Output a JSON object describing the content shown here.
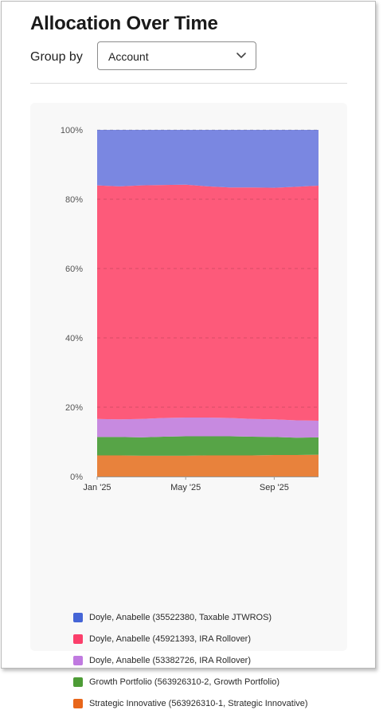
{
  "page": {
    "title": "Allocation Over Time"
  },
  "controls": {
    "group_by_label": "Group by",
    "group_by_value": "Account"
  },
  "colors": {
    "grid": "#d9d9d9",
    "axis": "#9a9a9a",
    "tick_text": "#555555"
  },
  "chart_data": {
    "type": "area",
    "stacked": true,
    "normalized": true,
    "x": [
      "2025-01",
      "2025-02",
      "2025-03",
      "2025-04",
      "2025-05",
      "2025-06",
      "2025-07",
      "2025-08",
      "2025-09",
      "2025-10",
      "2025-11"
    ],
    "x_tick_labels": [
      "Jan '25",
      "May '25",
      "Sep '25"
    ],
    "x_tick_positions": [
      0,
      4,
      8
    ],
    "y_ticks": [
      0,
      20,
      40,
      60,
      80,
      100
    ],
    "y_tick_labels": [
      "0%",
      "20%",
      "40%",
      "60%",
      "80%",
      "100%"
    ],
    "ylim": [
      0,
      100
    ],
    "grid": true,
    "legend_position": "bottom",
    "series": [
      {
        "name": "Strategic Innovative (563926310-1, Strategic Innovative)",
        "color": "#e8823c",
        "values": [
          6.1,
          6.1,
          6.0,
          6.0,
          6.0,
          6.1,
          6.1,
          6.1,
          6.2,
          6.2,
          6.3
        ]
      },
      {
        "name": "Growth Portfolio (563926310-2, Growth Portfolio)",
        "color": "#57a447",
        "values": [
          5.3,
          5.3,
          5.3,
          5.5,
          5.6,
          5.5,
          5.5,
          5.4,
          5.2,
          5.0,
          5.0
        ]
      },
      {
        "name": "Doyle, Anabelle (53382726, IRA Rollover)",
        "color": "#c78ae0",
        "values": [
          5.2,
          5.1,
          5.3,
          5.4,
          5.4,
          5.4,
          5.3,
          5.1,
          5.1,
          5.0,
          4.8
        ]
      },
      {
        "name": "Doyle, Anabelle (45921393, IRA Rollover)",
        "color": "#fd5a7a",
        "values": [
          67.4,
          67.2,
          67.4,
          67.2,
          67.2,
          66.7,
          66.5,
          66.8,
          66.8,
          67.4,
          67.8
        ]
      },
      {
        "name": "Doyle, Anabelle (35522380, Taxable JTWROS)",
        "color": "#7a87e1",
        "values": [
          16.0,
          16.3,
          16.0,
          15.9,
          15.8,
          16.3,
          16.6,
          16.6,
          16.7,
          16.4,
          16.1
        ]
      }
    ]
  },
  "legend": {
    "items": [
      {
        "label": "Doyle, Anabelle (35522380, Taxable JTWROS)",
        "color": "#4565d6"
      },
      {
        "label": "Doyle, Anabelle (45921393, IRA Rollover)",
        "color": "#fb3f6b"
      },
      {
        "label": "Doyle, Anabelle (53382726, IRA Rollover)",
        "color": "#c07ae0"
      },
      {
        "label": "Growth Portfolio (563926310-2, Growth Portfolio)",
        "color": "#4d9c36"
      },
      {
        "label": "Strategic Innovative (563926310-1, Strategic Innovative)",
        "color": "#e8661a"
      }
    ]
  }
}
